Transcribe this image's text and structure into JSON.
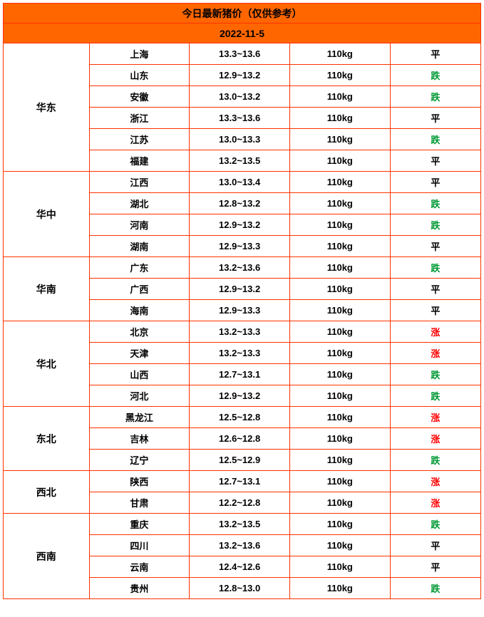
{
  "title": "今日最新猪价（仅供参考）",
  "date": "2022-11-5",
  "colors": {
    "border": "#ff3300",
    "header_bg": "#ff6600",
    "trend_up": "#ff0000",
    "trend_down": "#009933",
    "trend_flat": "#000000"
  },
  "trend_labels": {
    "up": "涨",
    "down": "跌",
    "flat": "平"
  },
  "regions": [
    {
      "name": "华东",
      "rows": [
        {
          "province": "上海",
          "price": "13.3~13.6",
          "weight": "110kg",
          "trend": "flat"
        },
        {
          "province": "山东",
          "price": "12.9~13.2",
          "weight": "110kg",
          "trend": "down"
        },
        {
          "province": "安徽",
          "price": "13.0~13.2",
          "weight": "110kg",
          "trend": "down"
        },
        {
          "province": "浙江",
          "price": "13.3~13.6",
          "weight": "110kg",
          "trend": "flat"
        },
        {
          "province": "江苏",
          "price": "13.0~13.3",
          "weight": "110kg",
          "trend": "down"
        },
        {
          "province": "福建",
          "price": "13.2~13.5",
          "weight": "110kg",
          "trend": "flat"
        }
      ]
    },
    {
      "name": "华中",
      "rows": [
        {
          "province": "江西",
          "price": "13.0~13.4",
          "weight": "110kg",
          "trend": "flat"
        },
        {
          "province": "湖北",
          "price": "12.8~13.2",
          "weight": "110kg",
          "trend": "down"
        },
        {
          "province": "河南",
          "price": "12.9~13.2",
          "weight": "110kg",
          "trend": "down"
        },
        {
          "province": "湖南",
          "price": "12.9~13.3",
          "weight": "110kg",
          "trend": "flat"
        }
      ]
    },
    {
      "name": "华南",
      "rows": [
        {
          "province": "广东",
          "price": "13.2~13.6",
          "weight": "110kg",
          "trend": "down"
        },
        {
          "province": "广西",
          "price": "12.9~13.2",
          "weight": "110kg",
          "trend": "flat"
        },
        {
          "province": "海南",
          "price": "12.9~13.3",
          "weight": "110kg",
          "trend": "flat"
        }
      ]
    },
    {
      "name": "华北",
      "rows": [
        {
          "province": "北京",
          "price": "13.2~13.3",
          "weight": "110kg",
          "trend": "up"
        },
        {
          "province": "天津",
          "price": "13.2~13.3",
          "weight": "110kg",
          "trend": "up"
        },
        {
          "province": "山西",
          "price": "12.7~13.1",
          "weight": "110kg",
          "trend": "down"
        },
        {
          "province": "河北",
          "price": "12.9~13.2",
          "weight": "110kg",
          "trend": "down"
        }
      ]
    },
    {
      "name": "东北",
      "rows": [
        {
          "province": "黑龙江",
          "price": "12.5~12.8",
          "weight": "110kg",
          "trend": "up"
        },
        {
          "province": "吉林",
          "price": "12.6~12.8",
          "weight": "110kg",
          "trend": "up"
        },
        {
          "province": "辽宁",
          "price": "12.5~12.9",
          "weight": "110kg",
          "trend": "down"
        }
      ]
    },
    {
      "name": "西北",
      "rows": [
        {
          "province": "陕西",
          "price": "12.7~13.1",
          "weight": "110kg",
          "trend": "up"
        },
        {
          "province": "甘肃",
          "price": "12.2~12.8",
          "weight": "110kg",
          "trend": "up"
        }
      ]
    },
    {
      "name": "西南",
      "rows": [
        {
          "province": "重庆",
          "price": "13.2~13.5",
          "weight": "110kg",
          "trend": "down"
        },
        {
          "province": "四川",
          "price": "13.2~13.6",
          "weight": "110kg",
          "trend": "flat"
        },
        {
          "province": "云南",
          "price": "12.4~12.6",
          "weight": "110kg",
          "trend": "flat"
        },
        {
          "province": "贵州",
          "price": "12.8~13.0",
          "weight": "110kg",
          "trend": "down"
        }
      ]
    }
  ]
}
